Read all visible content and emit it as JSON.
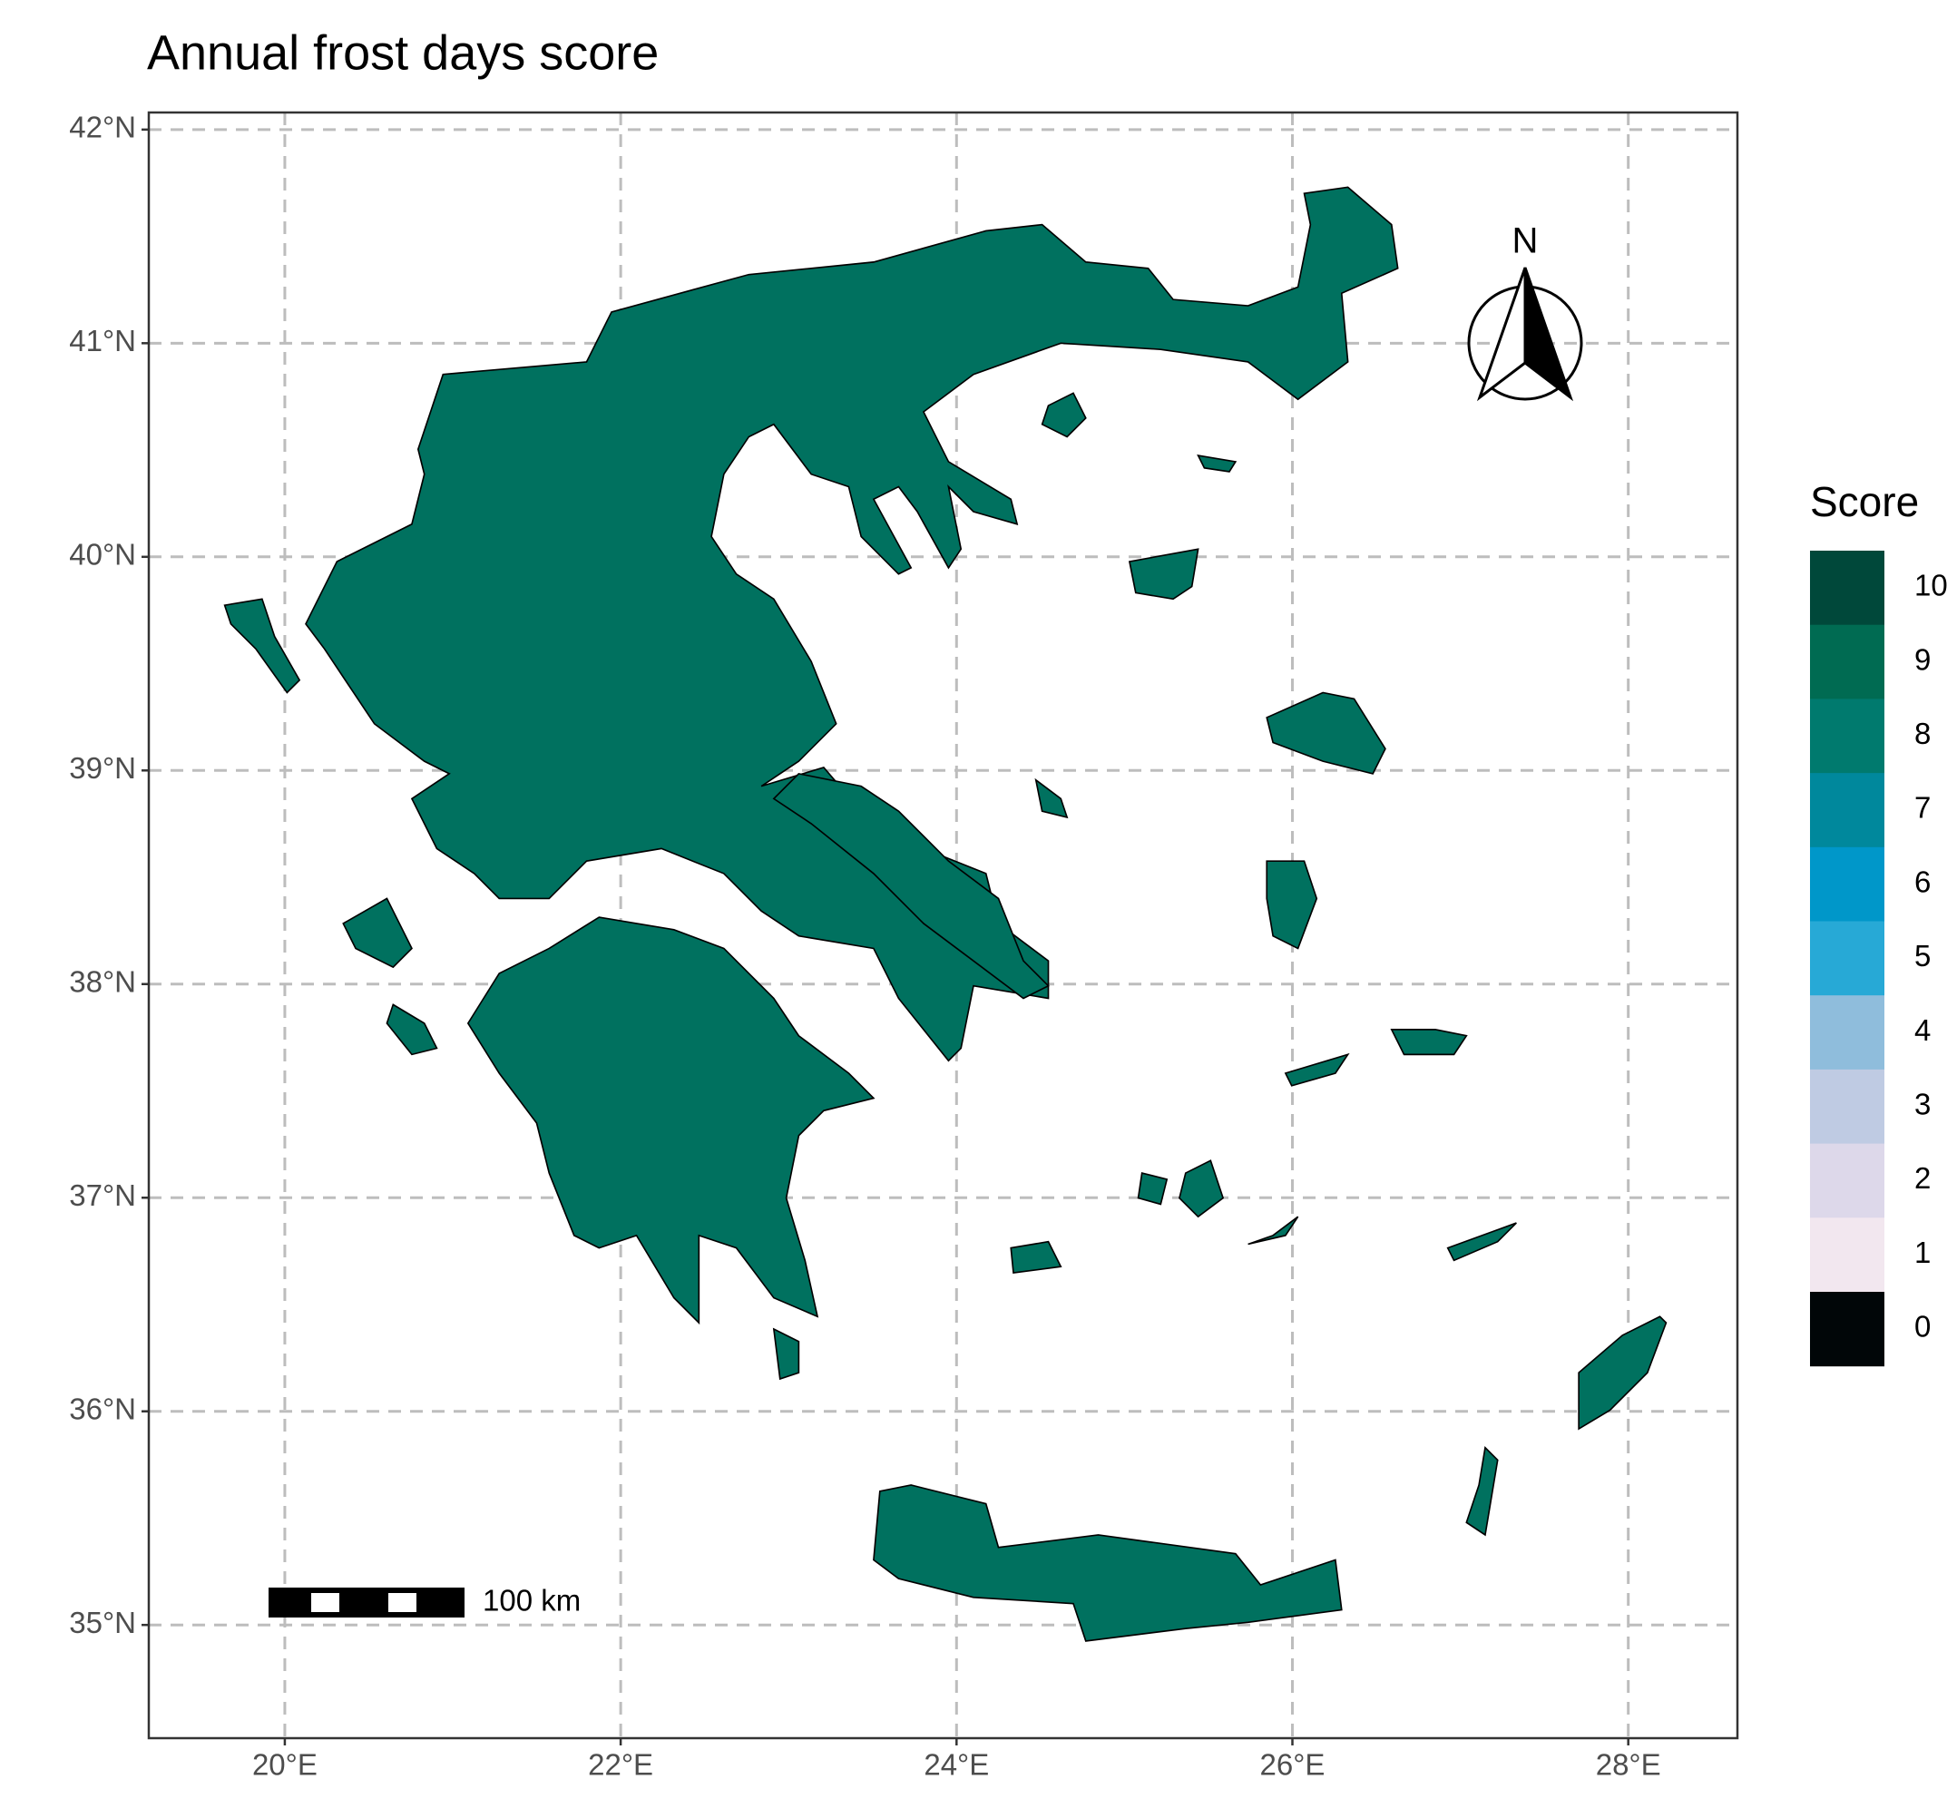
{
  "title": "Annual frost days score",
  "xlim": [
    19.19,
    28.65
  ],
  "ylim": [
    34.47,
    42.08
  ],
  "xticks": [
    {
      "value": 20,
      "label": "20°E"
    },
    {
      "value": 22,
      "label": "22°E"
    },
    {
      "value": 24,
      "label": "24°E"
    },
    {
      "value": 26,
      "label": "26°E"
    },
    {
      "value": 28,
      "label": "28°E"
    }
  ],
  "yticks": [
    {
      "value": 35,
      "label": "35°N"
    },
    {
      "value": 36,
      "label": "36°N"
    },
    {
      "value": 37,
      "label": "37°N"
    },
    {
      "value": 38,
      "label": "38°N"
    },
    {
      "value": 39,
      "label": "39°N"
    },
    {
      "value": 40,
      "label": "40°N"
    },
    {
      "value": 41,
      "label": "41°N"
    },
    {
      "value": 42,
      "label": "42°N"
    }
  ],
  "grid": true,
  "legend": {
    "title": "Score",
    "values": [
      10,
      9,
      8,
      7,
      6,
      5,
      4,
      3,
      2,
      1,
      0
    ],
    "colors": [
      "#00483a",
      "#006b52",
      "#007a6e",
      "#00889c",
      "#0097c9",
      "#27a9d6",
      "#8fbddc",
      "#bfcbe3",
      "#ddd8ea",
      "#f2e7ef",
      "#010608"
    ]
  },
  "scale_bar": "100 km",
  "north_label": "N"
}
